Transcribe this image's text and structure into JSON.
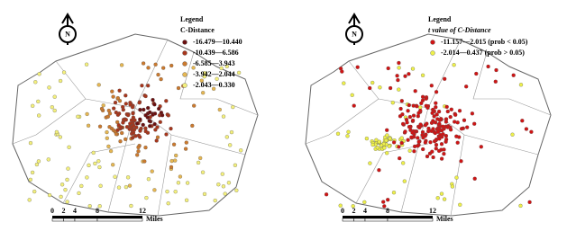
{
  "maps": [
    {
      "north": "N",
      "legend": {
        "title": "Legend",
        "subtitle": "C-Distance",
        "items": [
          {
            "label": "-16.479—10.440",
            "color": "#6b1010"
          },
          {
            "label": "-10.439—6.586",
            "color": "#a8361c"
          },
          {
            "label": "-6.585—3.943",
            "color": "#cc7a2e"
          },
          {
            "label": "-3.942—2.044",
            "color": "#e6b752"
          },
          {
            "label": "-2.043—0.330",
            "color": "#f4f07c"
          }
        ]
      },
      "scale": {
        "ticks": [
          "0",
          "2",
          "4",
          "8",
          "12"
        ],
        "unit": "Miles"
      }
    },
    {
      "north": "N",
      "legend": {
        "title": "Legend",
        "subtitle": "t value of C-Distance",
        "items": [
          {
            "label": "-11.157—2.015 (prob < 0.05)",
            "color": "#d01414"
          },
          {
            "label": "-2.014—0.437 (prob > 0.05)",
            "color": "#eef04a"
          }
        ]
      },
      "scale": {
        "ticks": [
          "0",
          "2",
          "4",
          "8",
          "12"
        ],
        "unit": "Miles"
      }
    }
  ]
}
